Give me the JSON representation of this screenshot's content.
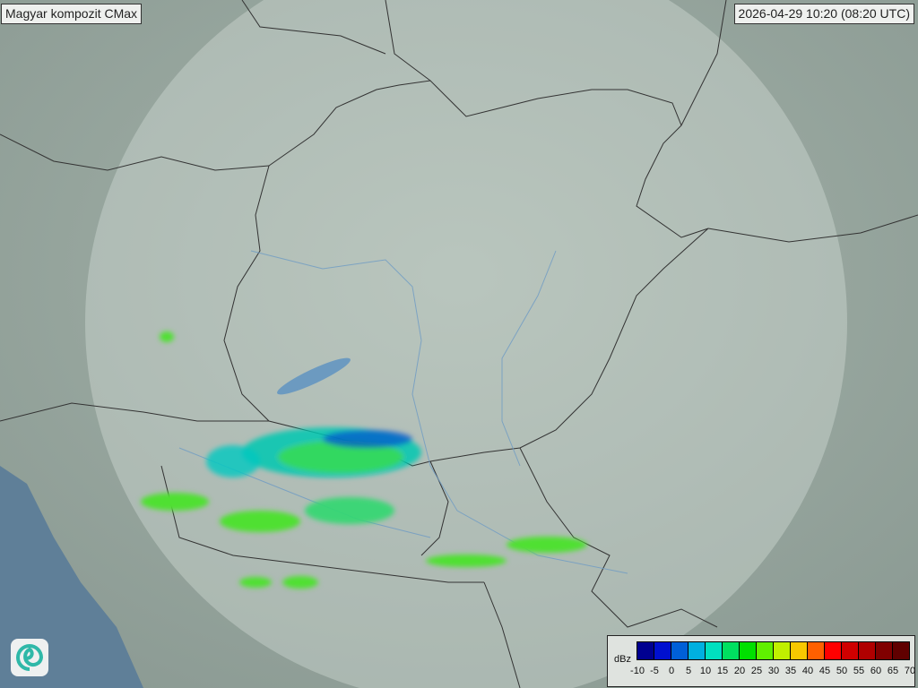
{
  "header": {
    "title": "Magyar kompozit  CMax",
    "timestamp": "2026-04-29 10:20 (08:20 UTC)"
  },
  "legend": {
    "unit": "dBz",
    "ticks": [
      "-10",
      "-5",
      "0",
      "5",
      "10",
      "15",
      "20",
      "25",
      "30",
      "35",
      "40",
      "45",
      "50",
      "55",
      "60",
      "65",
      "70"
    ],
    "colors": [
      "#000090",
      "#0010d0",
      "#0060d8",
      "#00b0e0",
      "#00e0c0",
      "#00e060",
      "#00e000",
      "#60f000",
      "#c0f000",
      "#f8c800",
      "#ff6000",
      "#ff0000",
      "#d00000",
      "#b00000",
      "#800000",
      "#600000"
    ]
  },
  "logo": {
    "icon": "swirl-logo-icon"
  }
}
